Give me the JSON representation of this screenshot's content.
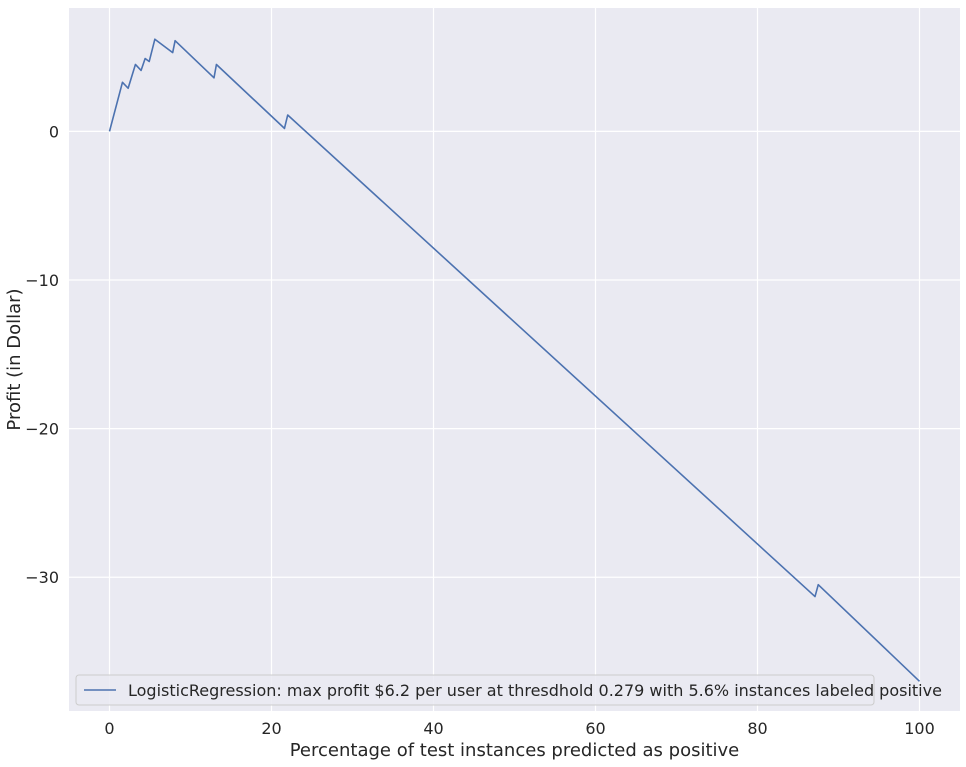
{
  "chart_data": {
    "type": "line",
    "title": "",
    "xlabel": "Percentage of test instances predicted as positive",
    "ylabel": "Profit (in Dollar)",
    "xlim": [
      -5,
      105
    ],
    "ylim": [
      -39,
      8.3
    ],
    "xticks": [
      0,
      20,
      40,
      60,
      80,
      100
    ],
    "yticks": [
      0,
      -10,
      -20,
      -30
    ],
    "grid": true,
    "legend_position": "lower-left",
    "background_color": "#EAEAF2",
    "grid_color": "#FFFFFF",
    "series": [
      {
        "name": "LogisticRegression: max profit $6.2 per user at thresdhold 0.279 with 5.6% instances labeled positive",
        "color": "#4C72B0",
        "x": [
          0,
          1.6,
          2.3,
          3.2,
          3.9,
          4.4,
          4.9,
          5.6,
          7.8,
          8.1,
          12.9,
          13.2,
          21.6,
          22.0,
          87.1,
          87.5,
          100
        ],
        "y": [
          0,
          3.3,
          2.9,
          4.5,
          4.1,
          4.9,
          4.7,
          6.2,
          5.3,
          6.1,
          3.6,
          4.5,
          0.2,
          1.1,
          -31.3,
          -30.5,
          -37.0
        ]
      }
    ]
  }
}
